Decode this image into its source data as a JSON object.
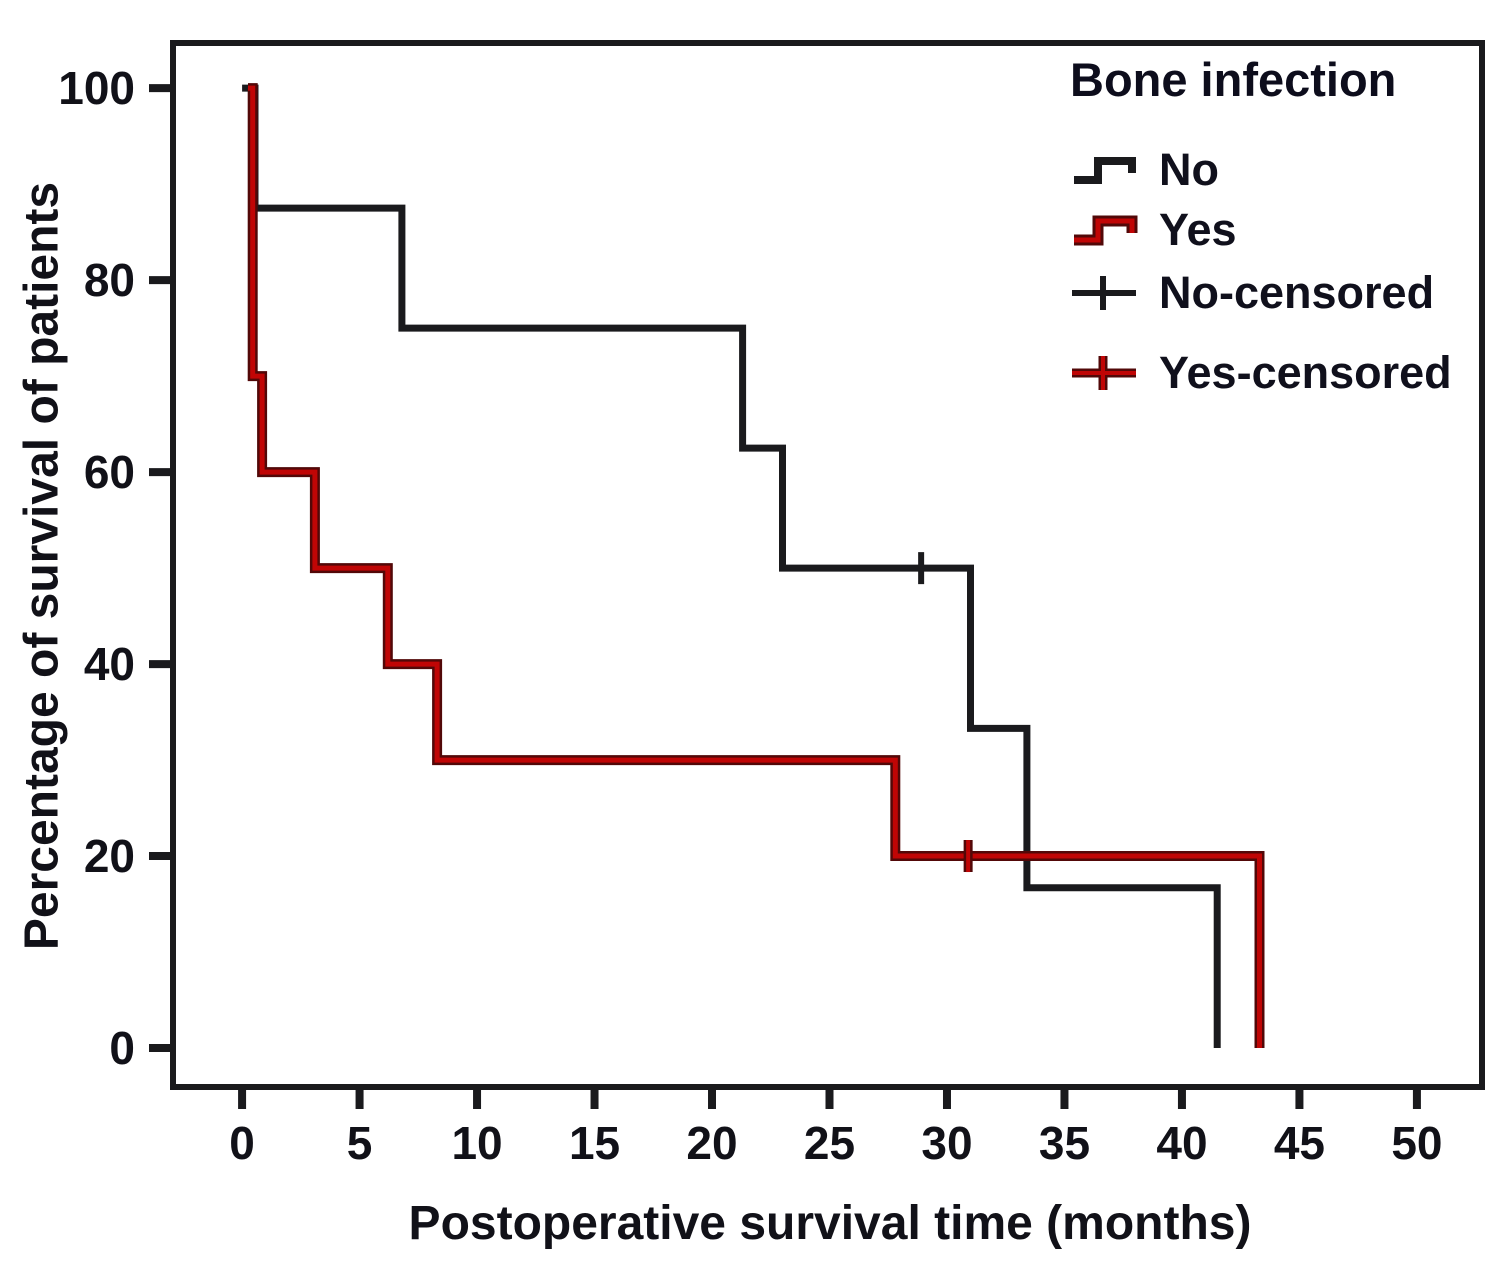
{
  "chart_data": {
    "type": "line",
    "subtype": "kaplan_meier_step_survival",
    "title": "",
    "xlabel": "Postoperative survival time (months)",
    "ylabel": "Percentage of survival of patients",
    "xlim": [
      -2.94,
      52.77
    ],
    "ylim": [
      -4.06,
      104.7
    ],
    "x_ticks": [
      0,
      5,
      10,
      15,
      20,
      25,
      30,
      35,
      40,
      45,
      50
    ],
    "y_ticks": [
      0,
      20,
      40,
      60,
      80,
      100
    ],
    "grid": false,
    "frame": true,
    "ink_color": "#1a1a1d",
    "legend": {
      "title": "Bone infection",
      "position": "top-right-inside",
      "items": [
        {
          "label": "No",
          "kind": "step-line",
          "series": 0
        },
        {
          "label": "Yes",
          "kind": "step-line",
          "series": 1
        },
        {
          "label": "No-censored",
          "kind": "censor-cross",
          "series": 0
        },
        {
          "label": "Yes-censored",
          "kind": "censor-cross",
          "series": 1
        }
      ]
    },
    "series": [
      {
        "name": "No",
        "color": "#1a1a1d",
        "points": [
          [
            0,
            100
          ],
          [
            0.55,
            100
          ],
          [
            0.55,
            87.5
          ],
          [
            6.8,
            87.5
          ],
          [
            6.8,
            75
          ],
          [
            21.3,
            75
          ],
          [
            21.3,
            62.5
          ],
          [
            23,
            62.5
          ],
          [
            23,
            50
          ],
          [
            31,
            50
          ],
          [
            31,
            33.3
          ],
          [
            33.4,
            33.3
          ],
          [
            33.4,
            16.7
          ],
          [
            41.5,
            16.7
          ],
          [
            41.5,
            0
          ]
        ],
        "censored": [
          [
            28.9,
            50
          ]
        ]
      },
      {
        "name": "Yes",
        "color": "#c00505",
        "edge_color": "#520808",
        "points": [
          [
            0.25,
            100
          ],
          [
            0.45,
            100
          ],
          [
            0.45,
            70
          ],
          [
            0.85,
            70
          ],
          [
            0.85,
            60
          ],
          [
            3.1,
            60
          ],
          [
            3.1,
            50
          ],
          [
            6.2,
            50
          ],
          [
            6.2,
            40
          ],
          [
            8.3,
            40
          ],
          [
            8.3,
            30
          ],
          [
            27.8,
            30
          ],
          [
            27.8,
            20
          ],
          [
            43.3,
            20
          ],
          [
            43.3,
            0
          ]
        ],
        "censored": [
          [
            30.9,
            20
          ]
        ]
      }
    ]
  }
}
